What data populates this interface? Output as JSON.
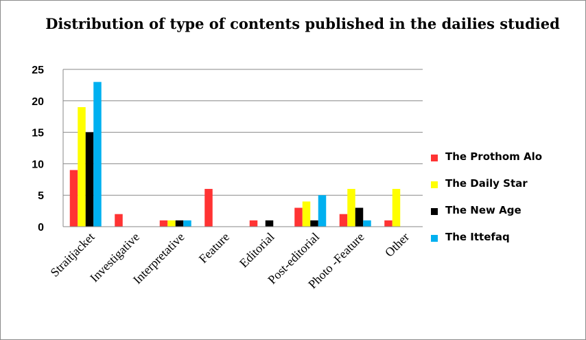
{
  "chart_data": {
    "type": "bar",
    "title": "Distribution of type of contents published in the dailies studied",
    "xlabel": "",
    "ylabel": "",
    "categories": [
      "Straitjacket",
      "Investigative",
      "Interpretative",
      "Feature",
      "Editorial",
      "Post-editorial",
      "Photo -Feature",
      "Other"
    ],
    "series": [
      {
        "name": "The Prothom Alo",
        "color": "#ff3333",
        "values": [
          9,
          2,
          1,
          6,
          1,
          3,
          2,
          1
        ]
      },
      {
        "name": "The Daily Star",
        "color": "#ffff00",
        "values": [
          19,
          0,
          1,
          0,
          0,
          4,
          6,
          6
        ]
      },
      {
        "name": "The New Age",
        "color": "#000000",
        "values": [
          15,
          0,
          1,
          0,
          1,
          1,
          3,
          0
        ]
      },
      {
        "name": "The Ittefaq",
        "color": "#00b0f0",
        "values": [
          23,
          0,
          1,
          0,
          0,
          5,
          1,
          0
        ]
      }
    ],
    "ylim": [
      0,
      25
    ],
    "yticks": [
      "0",
      "5",
      "10",
      "15",
      "20",
      "25"
    ],
    "grid": true,
    "legend_position": "right"
  }
}
